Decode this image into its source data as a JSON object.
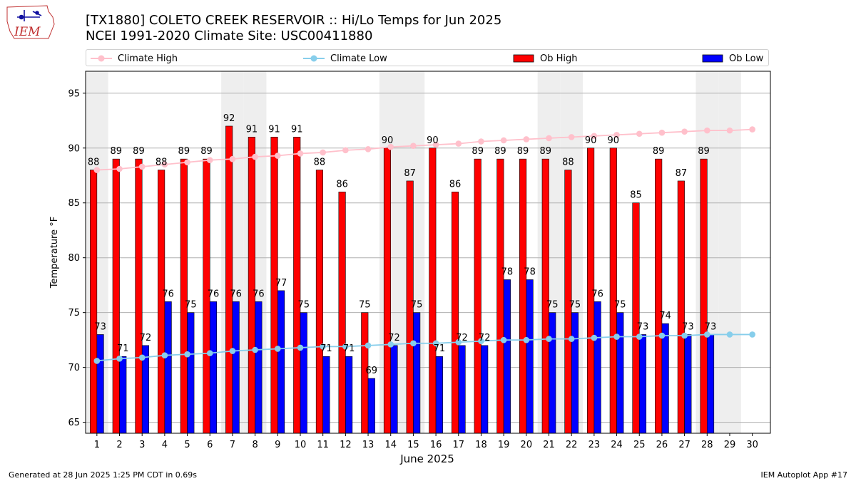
{
  "header": {
    "title_line1": "[TX1880] COLETO CREEK RESERVOIR :: Hi/Lo Temps for Jun 2025",
    "title_line2": "NCEI 1991-2020 Climate Site: USC00411880",
    "logo_text": "IEM"
  },
  "legend": {
    "climate_high": "Climate High",
    "climate_low": "Climate Low",
    "ob_high": "Ob High",
    "ob_low": "Ob Low"
  },
  "colors": {
    "ob_high": "#ff0000",
    "ob_low": "#0000ff",
    "climate_high": "#ffc0cb",
    "climate_low": "#87ceeb",
    "weekend_band": "#eeeeee",
    "grid": "#b0b0b0"
  },
  "footer": {
    "left": "Generated at 28 Jun 2025 1:25 PM CDT in 0.69s",
    "right": "IEM Autoplot App #17"
  },
  "chart_data": {
    "type": "bar",
    "xlabel": "June 2025",
    "ylabel": "Temperature °F",
    "ylim": [
      64,
      97
    ],
    "yticks": [
      65,
      70,
      75,
      80,
      85,
      90,
      95
    ],
    "grid": "horizontal",
    "legend_position": "top",
    "categories": [
      1,
      2,
      3,
      4,
      5,
      6,
      7,
      8,
      9,
      10,
      11,
      12,
      13,
      14,
      15,
      16,
      17,
      18,
      19,
      20,
      21,
      22,
      23,
      24,
      25,
      26,
      27,
      28,
      29,
      30
    ],
    "weekend_days": [
      1,
      7,
      8,
      14,
      15,
      21,
      22,
      28,
      29
    ],
    "series": [
      {
        "name": "Ob High",
        "type": "bar",
        "values": [
          88,
          89,
          89,
          88,
          89,
          89,
          92,
          91,
          91,
          91,
          88,
          86,
          75,
          90,
          87,
          90,
          86,
          89,
          89,
          89,
          89,
          88,
          90,
          90,
          85,
          89,
          87,
          89,
          null,
          null
        ]
      },
      {
        "name": "Ob Low",
        "type": "bar",
        "values": [
          73,
          71,
          72,
          76,
          75,
          76,
          76,
          76,
          77,
          75,
          71,
          71,
          69,
          72,
          75,
          71,
          72,
          72,
          78,
          78,
          75,
          75,
          76,
          75,
          73,
          74,
          73,
          73,
          null,
          null
        ]
      },
      {
        "name": "Climate High",
        "type": "line",
        "values": [
          88.0,
          88.1,
          88.3,
          88.5,
          88.7,
          88.9,
          89.0,
          89.2,
          89.3,
          89.5,
          89.6,
          89.8,
          89.9,
          90.1,
          90.2,
          90.3,
          90.4,
          90.6,
          90.7,
          90.8,
          90.9,
          91.0,
          91.1,
          91.2,
          91.3,
          91.4,
          91.5,
          91.6,
          91.6,
          91.7
        ]
      },
      {
        "name": "Climate Low",
        "type": "line",
        "values": [
          70.6,
          70.8,
          70.9,
          71.1,
          71.2,
          71.3,
          71.5,
          71.6,
          71.7,
          71.8,
          71.9,
          71.9,
          72.0,
          72.1,
          72.2,
          72.2,
          72.3,
          72.4,
          72.5,
          72.5,
          72.6,
          72.6,
          72.7,
          72.8,
          72.8,
          72.9,
          72.9,
          73.0,
          73.0,
          73.0
        ]
      }
    ]
  }
}
